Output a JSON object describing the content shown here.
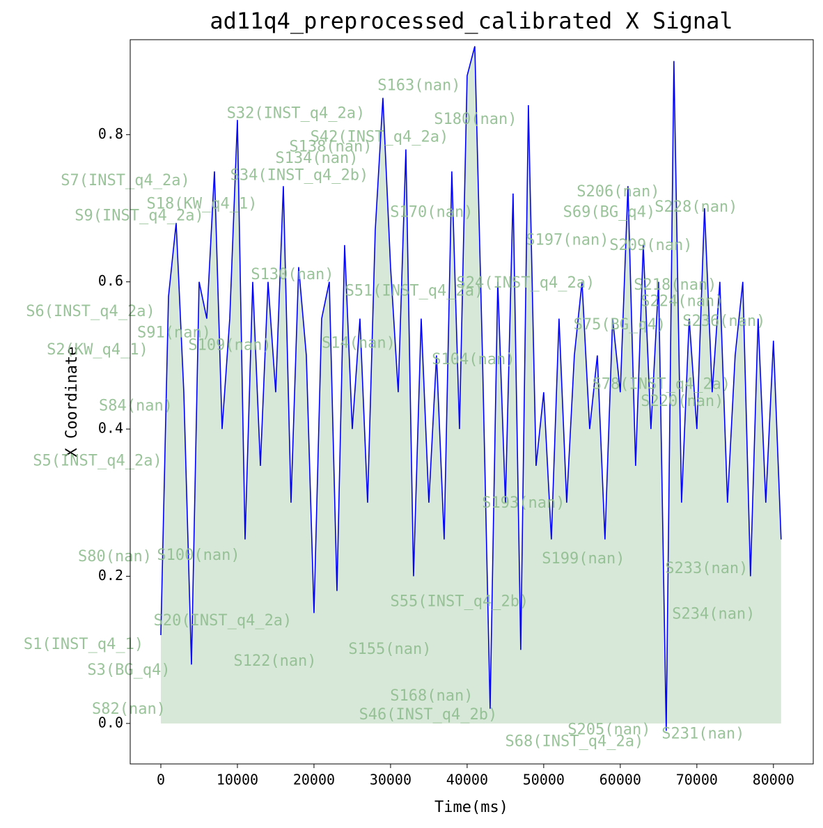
{
  "chart_data": {
    "type": "line",
    "title": "ad11q4_preprocessed_calibrated X Signal",
    "x_label": "Time(ms)",
    "y_label": "X Coordinate",
    "xlim": [
      -4000,
      85200
    ],
    "ylim": [
      -0.055,
      0.929
    ],
    "xticks": [
      0,
      10000,
      20000,
      30000,
      40000,
      50000,
      60000,
      70000,
      80000
    ],
    "yticks": [
      {
        "value": 0,
        "label": "0.0"
      },
      0.2,
      0.4,
      0.6,
      0.8
    ],
    "fill_color": "#8fbc8f",
    "annotation_color": "#8fbc8f",
    "x": [
      0,
      1000,
      2000,
      3000,
      4000,
      5000,
      6000,
      7000,
      8000,
      9000,
      10000,
      11000,
      12000,
      13000,
      14000,
      15000,
      16000,
      17000,
      18000,
      19000,
      20000,
      21000,
      22000,
      23000,
      24000,
      25000,
      26000,
      27000,
      28000,
      29000,
      30000,
      31000,
      32000,
      33000,
      34000,
      35000,
      36000,
      37000,
      38000,
      39000,
      40000,
      41000,
      42000,
      43000,
      44000,
      45000,
      46000,
      47000,
      48000,
      49000,
      50000,
      51000,
      52000,
      53000,
      54000,
      55000,
      56000,
      57000,
      58000,
      59000,
      60000,
      61000,
      62000,
      63000,
      64000,
      65000,
      66000,
      67000,
      68000,
      69000,
      70000,
      71000,
      72000,
      73000,
      74000,
      75000,
      76000,
      77000,
      78000,
      79000,
      80000,
      81000
    ],
    "series": [
      {
        "name": "X",
        "color": "blue",
        "values": [
          0.12,
          0.58,
          0.68,
          0.45,
          0.08,
          0.6,
          0.55,
          0.75,
          0.4,
          0.55,
          0.82,
          0.25,
          0.6,
          0.35,
          0.6,
          0.45,
          0.73,
          0.3,
          0.62,
          0.5,
          0.15,
          0.55,
          0.6,
          0.18,
          0.65,
          0.4,
          0.55,
          0.3,
          0.67,
          0.85,
          0.62,
          0.45,
          0.78,
          0.2,
          0.55,
          0.3,
          0.5,
          0.25,
          0.75,
          0.4,
          0.88,
          0.92,
          0.5,
          0.02,
          0.6,
          0.3,
          0.72,
          0.1,
          0.84,
          0.35,
          0.45,
          0.25,
          0.55,
          0.3,
          0.5,
          0.6,
          0.4,
          0.5,
          0.25,
          0.55,
          0.45,
          0.73,
          0.35,
          0.65,
          0.4,
          0.6,
          -0.01,
          0.9,
          0.3,
          0.55,
          0.4,
          0.7,
          0.45,
          0.6,
          0.3,
          0.5,
          0.6,
          0.2,
          0.55,
          0.3,
          0.52,
          0.25
        ]
      }
    ],
    "annotations": [
      {
        "text": "S32(INST_q4_2a)",
        "x": 17636,
        "y": 0.828
      },
      {
        "text": "S163(nan)",
        "x": 33727,
        "y": 0.866
      },
      {
        "text": "S180(nan)",
        "x": 41090,
        "y": 0.82
      },
      {
        "text": "S42(INST_q4_2a)",
        "x": 28545,
        "y": 0.796
      },
      {
        "text": "S138(nan)",
        "x": 22182,
        "y": 0.783
      },
      {
        "text": "S134(nan)",
        "x": 20364,
        "y": 0.767
      },
      {
        "text": "S7(INST_q4_2a)",
        "x": -4636,
        "y": 0.737
      },
      {
        "text": "S34(INST_q4_2b)",
        "x": 18091,
        "y": 0.744
      },
      {
        "text": "S206(nan)",
        "x": 59727,
        "y": 0.722
      },
      {
        "text": "S228(nan)",
        "x": 69909,
        "y": 0.701
      },
      {
        "text": "S69(BG_q4)",
        "x": 58545,
        "y": 0.694
      },
      {
        "text": "S9(INST_q4_2a)",
        "x": -2818,
        "y": 0.689
      },
      {
        "text": "S18(KW_q4_1)",
        "x": 5364,
        "y": 0.705
      },
      {
        "text": "S170(nan)",
        "x": 35364,
        "y": 0.694
      },
      {
        "text": "S197(nan)",
        "x": 53091,
        "y": 0.656
      },
      {
        "text": "S209(nan)",
        "x": 64000,
        "y": 0.649
      },
      {
        "text": "S130(nan)",
        "x": 17182,
        "y": 0.609
      },
      {
        "text": "S51(INST_q4_2a)",
        "x": 33091,
        "y": 0.587
      },
      {
        "text": "S24(INST_q4_2a)",
        "x": 47636,
        "y": 0.598
      },
      {
        "text": "S218(nan)",
        "x": 67182,
        "y": 0.595
      },
      {
        "text": "S6(INST_q4_2a)",
        "x": -9182,
        "y": 0.559
      },
      {
        "text": "S224(nan)",
        "x": 68091,
        "y": 0.573
      },
      {
        "text": "S91(nan)",
        "x": 1727,
        "y": 0.53
      },
      {
        "text": "S75(BG_q4)",
        "x": 59909,
        "y": 0.541
      },
      {
        "text": "S236(nan)",
        "x": 73545,
        "y": 0.546
      },
      {
        "text": "S2(KW_q4_1)",
        "x": -8273,
        "y": 0.507
      },
      {
        "text": "S109(nan)",
        "x": 9000,
        "y": 0.513
      },
      {
        "text": "S14(nan)",
        "x": 25818,
        "y": 0.516
      },
      {
        "text": "S104(nan)",
        "x": 40818,
        "y": 0.494
      },
      {
        "text": "S78(INST_q4_2a)",
        "x": 65364,
        "y": 0.46
      },
      {
        "text": "S84(nan)",
        "x": -3273,
        "y": 0.431
      },
      {
        "text": "S220(nan)",
        "x": 68091,
        "y": 0.437
      },
      {
        "text": "S5(INST_q4_2a)",
        "x": -8273,
        "y": 0.356
      },
      {
        "text": "S193(nan)",
        "x": 47364,
        "y": 0.299
      },
      {
        "text": "S80(nan)",
        "x": -6000,
        "y": 0.226
      },
      {
        "text": "S100(nan)",
        "x": 4909,
        "y": 0.228
      },
      {
        "text": "S199(nan)",
        "x": 55182,
        "y": 0.223
      },
      {
        "text": "S233(nan)",
        "x": 71273,
        "y": 0.21
      },
      {
        "text": "S55(INST_q4_2b)",
        "x": 39000,
        "y": 0.165
      },
      {
        "text": "S234(nan)",
        "x": 72182,
        "y": 0.148
      },
      {
        "text": "S20(INST_q4_2a)",
        "x": 8091,
        "y": 0.139
      },
      {
        "text": "S1(INST_q4_1)",
        "x": -10091,
        "y": 0.107
      },
      {
        "text": "S122(nan)",
        "x": 14909,
        "y": 0.084
      },
      {
        "text": "S3(BG_q4)",
        "x": -4182,
        "y": 0.072
      },
      {
        "text": "S155(nan)",
        "x": 29909,
        "y": 0.1
      },
      {
        "text": "S82(nan)",
        "x": -4182,
        "y": 0.019
      },
      {
        "text": "S168(nan)",
        "x": 35364,
        "y": 0.037
      },
      {
        "text": "S46(INST_q4_2b)",
        "x": 34909,
        "y": 0.011
      },
      {
        "text": "S68(INST_q4_2a)",
        "x": 54000,
        "y": -0.025
      },
      {
        "text": "S205(nan)",
        "x": 58545,
        "y": -0.009
      },
      {
        "text": "S231(nan)",
        "x": 70818,
        "y": -0.015
      }
    ]
  }
}
